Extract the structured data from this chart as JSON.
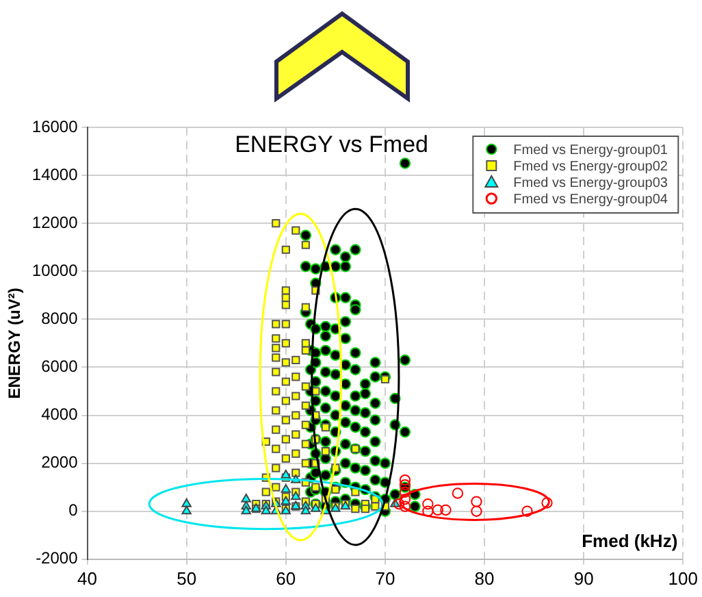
{
  "chart_data": {
    "type": "scatter",
    "title": "ENERGY vs Fmed",
    "xlabel": "Fmed (kHz)",
    "ylabel": "ENERGY (uV²)",
    "xlim": [
      40,
      100
    ],
    "xticks": [
      40,
      50,
      60,
      70,
      80,
      90,
      100
    ],
    "ylim": [
      -2000,
      16000
    ],
    "yticks": [
      -2000,
      0,
      2000,
      4000,
      6000,
      8000,
      10000,
      12000,
      14000,
      16000
    ],
    "grid": true,
    "legend": "top right",
    "series": [
      {
        "name": "Fmed vs Energy-group01",
        "color": "#000000",
        "marker": "circle",
        "x": [
          62,
          62,
          62,
          62.5,
          62.5,
          62.5,
          62.5,
          62.5,
          62.5,
          62.5,
          62.5,
          62.5,
          62.5,
          63,
          63,
          63,
          63,
          63,
          63,
          63,
          63,
          63,
          63,
          63,
          63,
          63,
          64,
          64,
          64,
          64,
          64,
          64,
          64,
          64,
          64,
          64,
          64,
          64,
          64,
          65,
          65,
          65,
          65,
          65,
          65,
          65,
          65,
          65,
          65,
          65,
          65,
          65,
          66,
          66,
          66,
          66,
          66,
          66,
          66,
          66,
          66,
          66,
          66,
          66,
          66,
          67,
          67,
          67,
          67,
          67,
          67,
          67,
          67,
          67,
          67,
          67,
          67,
          68,
          68,
          68,
          68,
          68,
          68,
          68,
          68,
          69,
          69,
          69,
          69,
          69,
          69,
          69,
          69,
          70,
          70,
          70,
          70,
          70,
          71,
          71,
          71,
          72,
          72,
          72,
          72,
          73,
          73
        ],
        "values": [
          11500,
          10200,
          8300,
          7800,
          6700,
          5900,
          5000,
          4200,
          3500,
          2800,
          2000,
          1400,
          800,
          10100,
          9500,
          7600,
          6600,
          6200,
          5400,
          4600,
          3800,
          3000,
          2400,
          1600,
          900,
          300,
          10200,
          7700,
          7300,
          6700,
          5800,
          5000,
          4300,
          3600,
          2900,
          2200,
          1500,
          800,
          200,
          10900,
          10200,
          8900,
          7600,
          6500,
          5700,
          4800,
          4000,
          3300,
          2500,
          1700,
          1000,
          400,
          10600,
          10200,
          8900,
          7900,
          7200,
          6100,
          5300,
          4400,
          3700,
          2800,
          2000,
          1200,
          500,
          10900,
          8600,
          8400,
          6600,
          5900,
          4800,
          4200,
          3500,
          2600,
          1800,
          1000,
          300,
          5300,
          4900,
          4100,
          3300,
          2500,
          1700,
          900,
          200,
          6200,
          5600,
          4500,
          3800,
          2900,
          2100,
          1300,
          600,
          5600,
          2000,
          1200,
          500,
          0,
          4700,
          3600,
          700,
          14500,
          6300,
          3300,
          1000,
          700,
          200
        ]
      },
      {
        "name": "Fmed vs Energy-group02",
        "color": "#ffff00",
        "marker": "square",
        "x": [
          57,
          57,
          58,
          58,
          58,
          58,
          59,
          59,
          59,
          59,
          59,
          59,
          59,
          59,
          59,
          59,
          59,
          59,
          59,
          60,
          60,
          60,
          60,
          60,
          60,
          60,
          60,
          60,
          60,
          60,
          60,
          60,
          60,
          60,
          61,
          61,
          61,
          61,
          61,
          61,
          61,
          61,
          61,
          61,
          62,
          62,
          62,
          62,
          62,
          62,
          62,
          62,
          62,
          62,
          62,
          63,
          63,
          63,
          63,
          63,
          63,
          63,
          64,
          64,
          64,
          65,
          65,
          65,
          66,
          67,
          67,
          67,
          68,
          68,
          69,
          69,
          70,
          70
        ],
        "values": [
          300,
          100,
          2900,
          1400,
          800,
          300,
          12000,
          7800,
          7200,
          6800,
          6400,
          5800,
          5000,
          4200,
          3400,
          2600,
          1800,
          1000,
          400,
          10900,
          9200,
          8900,
          8600,
          7800,
          7000,
          6200,
          5400,
          4600,
          3800,
          3000,
          2200,
          1400,
          600,
          100,
          11700,
          6300,
          5600,
          4800,
          4000,
          3200,
          2400,
          1600,
          800,
          200,
          11100,
          8500,
          7000,
          6700,
          5200,
          4400,
          3600,
          2800,
          2000,
          1200,
          400,
          9200,
          5000,
          4000,
          3000,
          2000,
          1000,
          300,
          3500,
          2500,
          500,
          1800,
          900,
          200,
          300,
          2600,
          800,
          100,
          300,
          100,
          500,
          200,
          5500,
          200
        ]
      },
      {
        "name": "Fmed vs Energy-group03",
        "color": "#00ffff",
        "marker": "triangle",
        "x": [
          50,
          50,
          56,
          56,
          56,
          57,
          58,
          58,
          59,
          59,
          60,
          60,
          60,
          60,
          61,
          61,
          61,
          62,
          62,
          63,
          64,
          65,
          66,
          71
        ],
        "values": [
          300,
          0,
          500,
          200,
          0,
          100,
          200,
          0,
          300,
          0,
          1500,
          900,
          400,
          0,
          1300,
          600,
          200,
          200,
          0,
          100,
          0,
          100,
          200,
          300
        ]
      },
      {
        "name": "Fmed vs Energy-group04",
        "color": "#ff0000",
        "marker": "circle",
        "x": [
          71.4,
          72,
          72,
          72,
          72,
          72,
          74.3,
          74.3,
          75.3,
          76.1,
          77.3,
          79.2,
          79.2,
          84.3,
          86.3
        ],
        "values": [
          300,
          1300,
          1100,
          800,
          500,
          200,
          300,
          0,
          50,
          50,
          750,
          400,
          0,
          0,
          350
        ]
      }
    ]
  }
}
